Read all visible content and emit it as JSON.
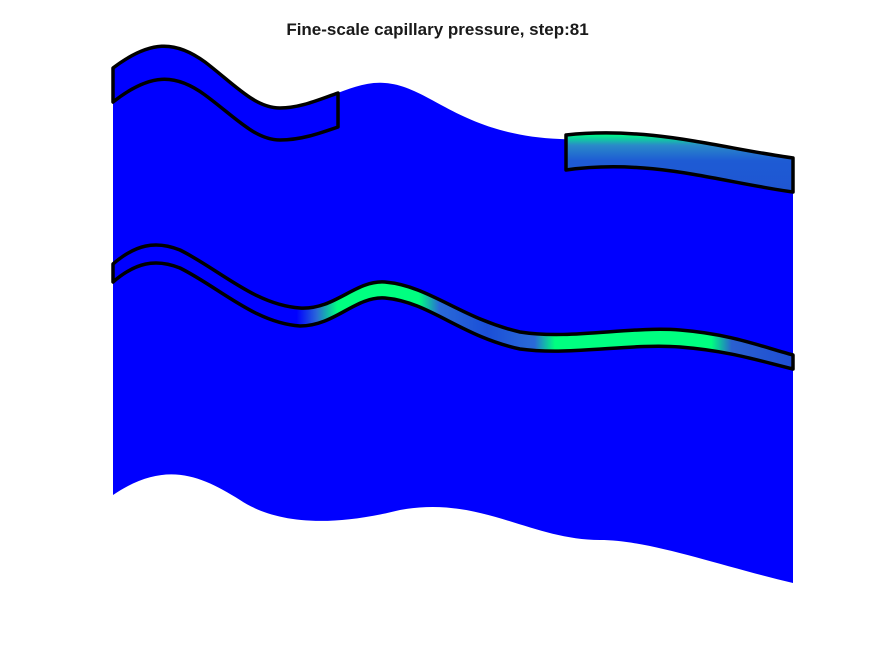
{
  "figure": {
    "title": "Fine-scale capillary pressure, step:81"
  },
  "colors": {
    "background": "#ffffff",
    "domain_fill": "#0000ff",
    "high_pressure": "#00ff80",
    "mid_pressure": "#2a5fd0",
    "outline": "#000000"
  }
}
